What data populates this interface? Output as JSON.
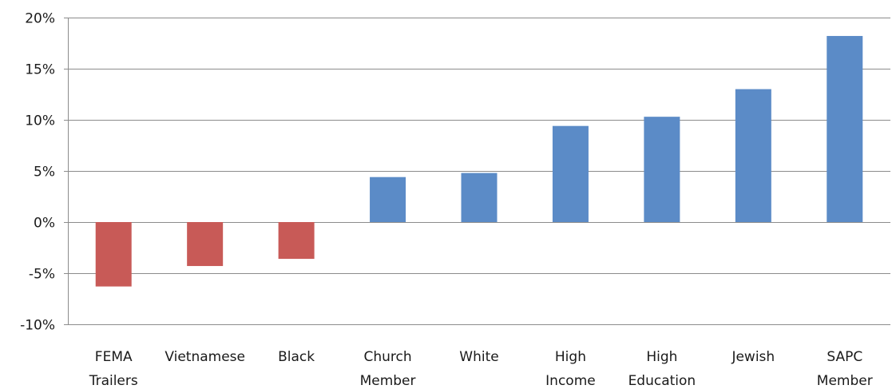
{
  "chart_data": {
    "type": "bar",
    "title": "",
    "xlabel": "",
    "ylabel": "",
    "categories": [
      [
        "FEMA",
        "Trailers"
      ],
      [
        "Vietnamese"
      ],
      [
        "Black"
      ],
      [
        "Church",
        "Member"
      ],
      [
        "White"
      ],
      [
        "High",
        "Income"
      ],
      [
        "High",
        "Education"
      ],
      [
        "Jewish"
      ],
      [
        "SAPC",
        "Member"
      ]
    ],
    "values": [
      -0.063,
      -0.043,
      -0.036,
      0.044,
      0.048,
      0.094,
      0.103,
      0.13,
      0.182
    ],
    "ylim": [
      -0.1,
      0.2
    ],
    "yticks": [
      -0.1,
      -0.05,
      0.0,
      0.05,
      0.1,
      0.15,
      0.2
    ],
    "ytick_labels": [
      "-10%",
      "-5%",
      "0%",
      "5%",
      "10%",
      "15%",
      "20%"
    ],
    "grid": true,
    "legend": "none",
    "colors": {
      "positive": "#5b8bc7",
      "negative": "#c85a57",
      "grid": "#8c8c8c",
      "axis": "#8c8c8c",
      "text": "#1a1a1a"
    }
  }
}
